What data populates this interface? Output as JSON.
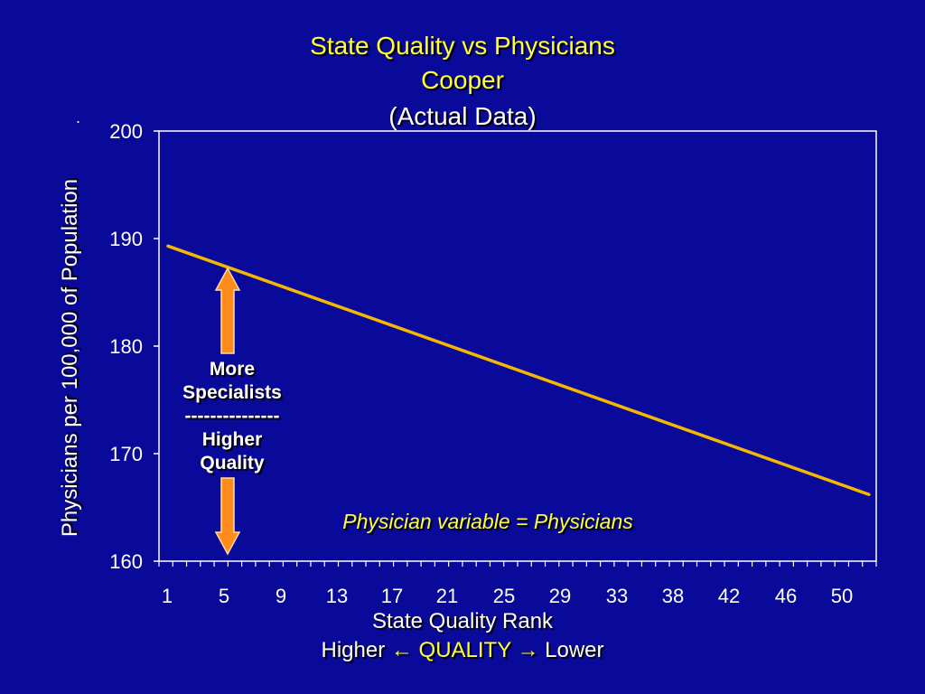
{
  "slide": {
    "title_lines": [
      "State Quality vs Physicians",
      "Cooper",
      "(Actual Data)"
    ],
    "colors": {
      "background": "#0a0a9a",
      "title_yellow": "#ffff33",
      "line": "#f5b800",
      "arrow": "#ff8c1a",
      "text": "#ffffff"
    },
    "annotation": {
      "lines": [
        "More",
        "Specialists",
        "---------------",
        "Higher",
        "Quality"
      ]
    },
    "note": "Physician variable = Physicians",
    "xlabel": "State Quality Rank",
    "quality_axis": {
      "left": "Higher",
      "left_arrow": "←",
      "middle": "QUALITY",
      "right_arrow": "→",
      "right": "Lower"
    },
    "ylabel": "Physicians per 100,000 of Population",
    "ylabel_marker": "."
  },
  "chart_data": {
    "type": "line",
    "title": "State Quality vs Physicians",
    "xlabel": "State Quality Rank",
    "ylabel": "Physicians per 100,000 of Population",
    "xlim": [
      1,
      52
    ],
    "ylim": [
      160,
      200
    ],
    "yticks": [
      160,
      170,
      180,
      190,
      200
    ],
    "xtick_labels": [
      "1",
      "5",
      "9",
      "13",
      "17",
      "21",
      "25",
      "29",
      "33",
      "38",
      "42",
      "46",
      "50"
    ],
    "grid": false,
    "series": [
      {
        "x": [
          1,
          52
        ],
        "y": [
          189.3,
          166.2
        ]
      }
    ]
  }
}
